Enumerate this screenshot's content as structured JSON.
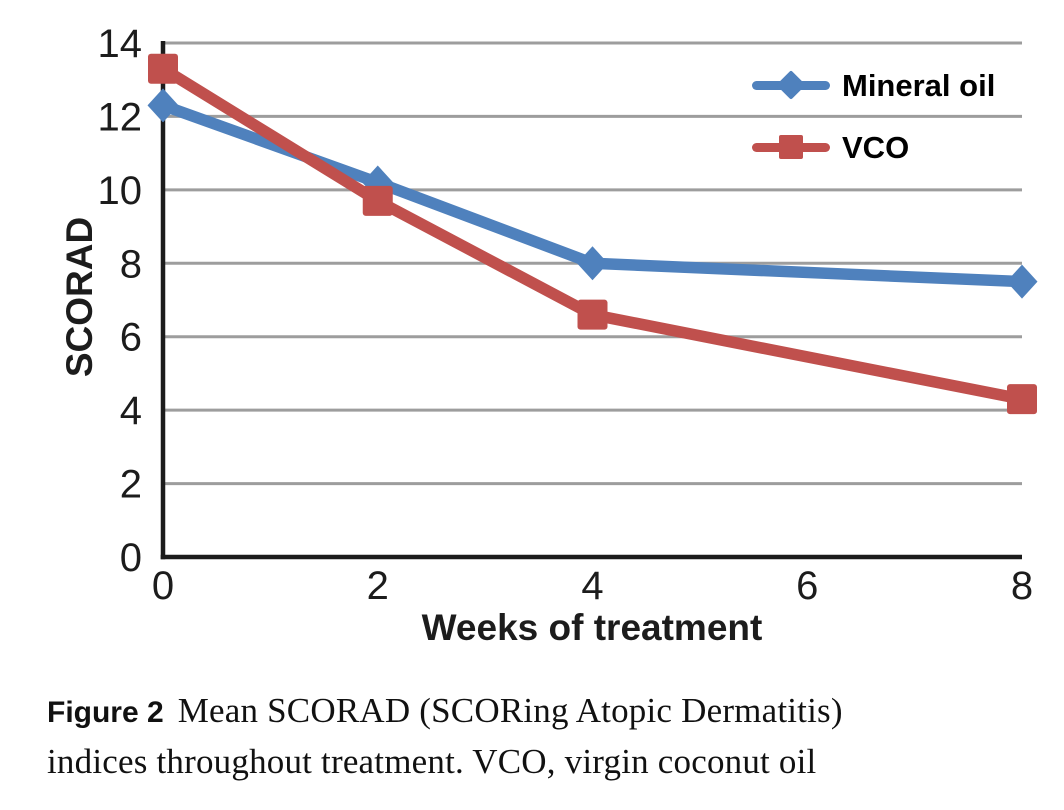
{
  "chart_data": {
    "type": "line",
    "x": [
      0,
      2,
      4,
      8
    ],
    "series": [
      {
        "name": "Mineral oil",
        "values": [
          12.3,
          10.2,
          8.0,
          7.5
        ],
        "color": "#4f81bd",
        "marker": "diamond"
      },
      {
        "name": "VCO",
        "values": [
          13.3,
          9.7,
          6.6,
          4.3
        ],
        "color": "#c0504d",
        "marker": "square"
      }
    ],
    "title": "",
    "xlabel": "Weeks of treatment",
    "ylabel": "SCORAD",
    "x_ticks": [
      0,
      2,
      4,
      6,
      8
    ],
    "y_ticks": [
      0,
      2,
      4,
      6,
      8,
      10,
      12,
      14
    ],
    "xlim": [
      0,
      8
    ],
    "ylim": [
      0,
      14
    ],
    "grid": "horizontal",
    "legend_position": "top-right",
    "grid_color": "#9d9d9d",
    "axis_color": "#1c1c1c",
    "tick_label_color": "#1c1c1c"
  },
  "legend": {
    "items": [
      {
        "label": "Mineral oil"
      },
      {
        "label": "VCO"
      }
    ]
  },
  "caption": {
    "label": "Figure 2",
    "line1": "Mean SCORAD (SCORing Atopic Dermatitis)",
    "line2": "indices throughout treatment. VCO, virgin coconut oil"
  }
}
